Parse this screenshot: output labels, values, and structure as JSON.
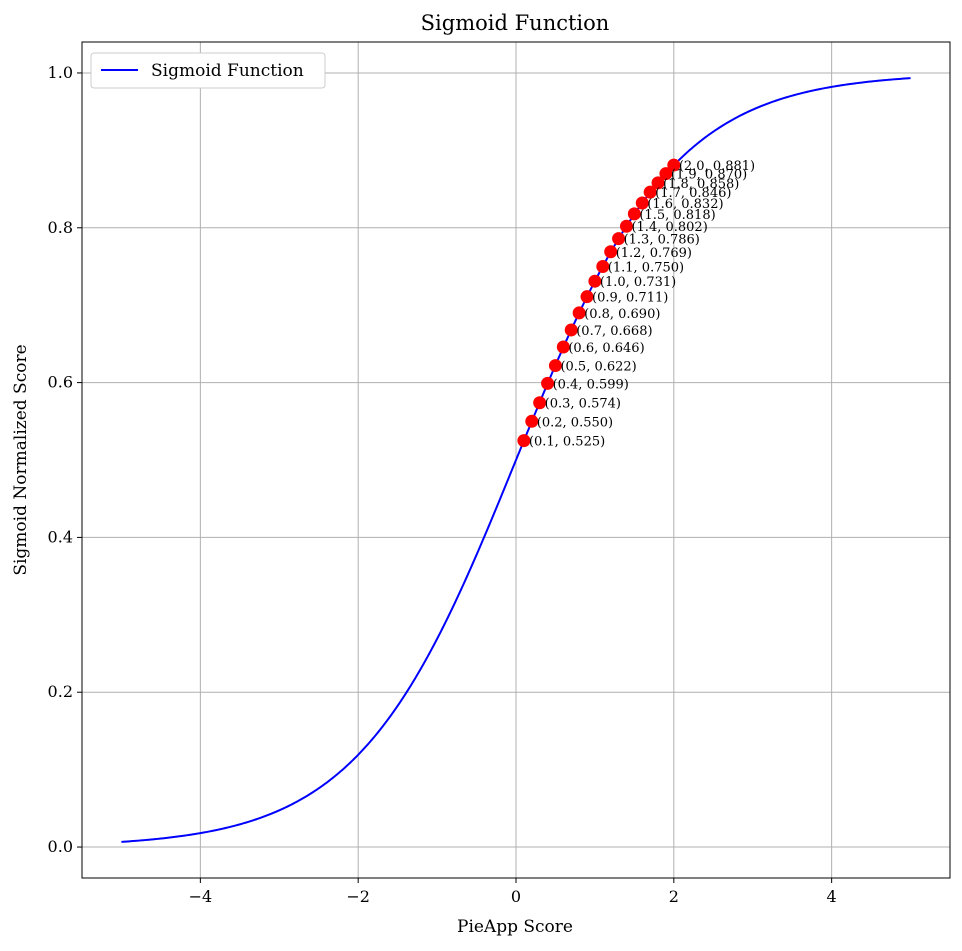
{
  "chart_data": {
    "type": "line",
    "title": "Sigmoid Function",
    "xlabel": "PieApp Score",
    "ylabel": "Sigmoid Normalized Score",
    "xlim": [
      -5.5,
      5.5
    ],
    "ylim": [
      -0.04,
      1.04
    ],
    "x_ticks": [
      -4,
      -2,
      0,
      2,
      4
    ],
    "x_tick_labels": [
      "−4",
      "−2",
      "0",
      "2",
      "4"
    ],
    "y_ticks": [
      0.0,
      0.2,
      0.4,
      0.6,
      0.8,
      1.0
    ],
    "y_tick_labels": [
      "0.0",
      "0.2",
      "0.4",
      "0.6",
      "0.8",
      "1.0"
    ],
    "grid": true,
    "legend": {
      "position": "top-left",
      "entries": [
        "Sigmoid Function"
      ]
    },
    "series": [
      {
        "name": "Sigmoid Function",
        "kind": "line",
        "color": "#0000ff",
        "x_range": [
          -5,
          5
        ],
        "function": "1/(1+exp(-x))"
      }
    ],
    "highlighted_points": {
      "color": "#ff0000",
      "x": [
        0.1,
        0.2,
        0.3,
        0.4,
        0.5,
        0.6,
        0.7,
        0.8,
        0.9,
        1.0,
        1.1,
        1.2,
        1.3,
        1.4,
        1.5,
        1.6,
        1.7,
        1.8,
        1.9,
        2.0
      ],
      "y": [
        0.525,
        0.55,
        0.574,
        0.599,
        0.622,
        0.646,
        0.668,
        0.69,
        0.711,
        0.731,
        0.75,
        0.769,
        0.786,
        0.802,
        0.818,
        0.832,
        0.846,
        0.858,
        0.87,
        0.881
      ],
      "labels": [
        "(0.1, 0.525)",
        "(0.2, 0.550)",
        "(0.3, 0.574)",
        "(0.4, 0.599)",
        "(0.5, 0.622)",
        "(0.6, 0.646)",
        "(0.7, 0.668)",
        "(0.8, 0.690)",
        "(0.9, 0.711)",
        "(1.0, 0.731)",
        "(1.1, 0.750)",
        "(1.2, 0.769)",
        "(1.3, 0.786)",
        "(1.4, 0.802)",
        "(1.5, 0.818)",
        "(1.6, 0.832)",
        "(1.7, 0.846)",
        "(1.8, 0.858)",
        "(1.9, 0.870)",
        "(2.0, 0.881)"
      ]
    }
  }
}
